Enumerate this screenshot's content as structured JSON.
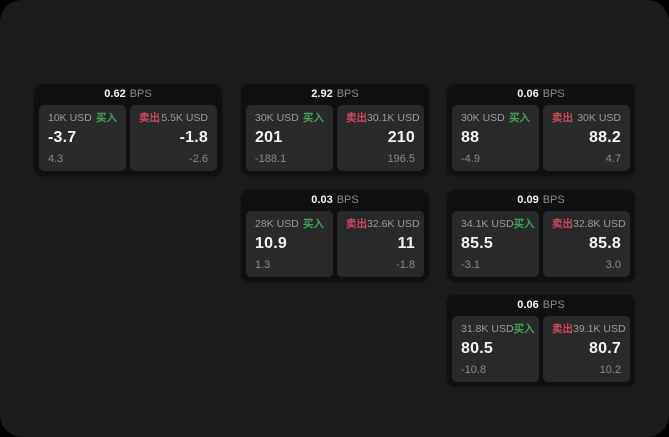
{
  "colors": {
    "window_bg": "#1c1c1e",
    "card_bg": "#101012",
    "panel_bg": "#29292b",
    "buy_green": "#3fa650",
    "sell_red": "#cf4a5e"
  },
  "labels": {
    "bps": "BPS",
    "buy": "买入",
    "sell": "卖出"
  },
  "cards": [
    {
      "bps": "0.62",
      "buy": {
        "amount": "10K USD",
        "price": "-3.7",
        "delta": "4.3"
      },
      "sell": {
        "amount": "5.5K USD",
        "price": "-1.8",
        "delta": "-2.6"
      }
    },
    {
      "bps": "2.92",
      "buy": {
        "amount": "30K USD",
        "price": "201",
        "delta": "-188.1"
      },
      "sell": {
        "amount": "30.1K USD",
        "price": "210",
        "delta": "196.5"
      }
    },
    {
      "bps": "0.06",
      "buy": {
        "amount": "30K USD",
        "price": "88",
        "delta": "-4.9"
      },
      "sell": {
        "amount": "30K USD",
        "price": "88.2",
        "delta": "4.7"
      }
    },
    {
      "bps": "0.03",
      "buy": {
        "amount": "28K USD",
        "price": "10.9",
        "delta": "1.3"
      },
      "sell": {
        "amount": "32.6K USD",
        "price": "11",
        "delta": "-1.8"
      }
    },
    {
      "bps": "0.09",
      "buy": {
        "amount": "34.1K USD",
        "price": "85.5",
        "delta": "-3.1"
      },
      "sell": {
        "amount": "32.8K USD",
        "price": "85.8",
        "delta": "3.0"
      }
    },
    {
      "bps": "0.06",
      "buy": {
        "amount": "31.8K USD",
        "price": "80.5",
        "delta": "-10.8"
      },
      "sell": {
        "amount": "39.1K USD",
        "price": "80.7",
        "delta": "10.2"
      }
    }
  ]
}
